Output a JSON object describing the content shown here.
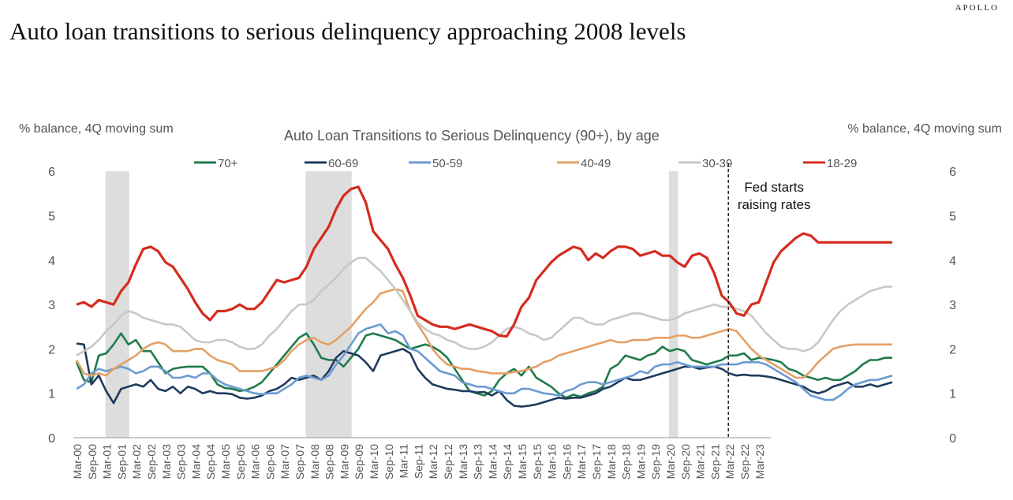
{
  "brand": "APOLLO",
  "headline": "Auto loan transitions to serious delinquency approaching 2008 levels",
  "chart_data": {
    "type": "line",
    "title": "Auto Loan Transitions to Serious Delinquency (90+), by age",
    "ylabel_left": "% balance, 4Q moving sum",
    "ylabel_right": "% balance, 4Q moving sum",
    "ylim": [
      0,
      6
    ],
    "yticks": [
      0,
      1,
      2,
      3,
      4,
      5,
      6
    ],
    "grid": false,
    "legend_position": "top",
    "x_start": "2000Q1",
    "x_end": "2023Q2",
    "xtick_labels": [
      "Mar-00",
      "Sep-00",
      "Mar-01",
      "Sep-01",
      "Mar-02",
      "Sep-02",
      "Mar-03",
      "Sep-03",
      "Mar-04",
      "Sep-04",
      "Mar-05",
      "Sep-05",
      "Mar-06",
      "Sep-06",
      "Mar-07",
      "Sep-07",
      "Mar-08",
      "Sep-08",
      "Mar-09",
      "Sep-09",
      "Mar-10",
      "Sep-10",
      "Mar-11",
      "Sep-11",
      "Mar-12",
      "Sep-12",
      "Mar-13",
      "Sep-13",
      "Mar-14",
      "Sep-14",
      "Mar-15",
      "Sep-15",
      "Mar-16",
      "Sep-16",
      "Mar-17",
      "Sep-17",
      "Mar-18",
      "Sep-18",
      "Mar-19",
      "Sep-19",
      "Mar-20",
      "Sep-20",
      "Mar-21",
      "Sep-21",
      "Mar-22",
      "Sep-22",
      "Mar-23"
    ],
    "recessions": [
      {
        "start": "2001Q1",
        "end": "2001Q4"
      },
      {
        "start": "2007Q4",
        "end": "2009Q2"
      },
      {
        "start": "2020Q1",
        "end": "2020Q2"
      }
    ],
    "annotation": {
      "text_line1": "Fed starts",
      "text_line2": "raising rates",
      "x": "2022Q1"
    },
    "series": [
      {
        "name": "70+",
        "color": "#1e7b4b",
        "values": [
          1.7,
          1.3,
          1.25,
          1.85,
          1.9,
          2.1,
          2.35,
          2.1,
          2.2,
          1.95,
          1.95,
          1.7,
          1.45,
          1.55,
          1.58,
          1.6,
          1.6,
          1.6,
          1.45,
          1.2,
          1.12,
          1.1,
          1.05,
          1.08,
          1.15,
          1.25,
          1.45,
          1.65,
          1.85,
          2.05,
          2.25,
          2.35,
          2.1,
          1.8,
          1.75,
          1.75,
          1.6,
          1.8,
          2.0,
          2.3,
          2.35,
          2.3,
          2.25,
          2.2,
          2.1,
          2.0,
          2.05,
          2.1,
          2.05,
          1.95,
          1.8,
          1.55,
          1.3,
          1.05,
          1.0,
          0.95,
          1.05,
          1.3,
          1.45,
          1.55,
          1.4,
          1.6,
          1.35,
          1.25,
          1.15,
          1.0,
          0.9,
          0.97,
          0.92,
          1.0,
          1.05,
          1.15,
          1.55,
          1.65,
          1.85,
          1.8,
          1.75,
          1.85,
          1.9,
          2.05,
          1.95,
          2.0,
          1.95,
          1.75,
          1.7,
          1.65,
          1.7,
          1.75,
          1.85,
          1.85,
          1.9,
          1.75,
          1.8,
          1.78,
          1.75,
          1.7,
          1.55,
          1.5,
          1.4,
          1.35,
          1.3,
          1.35,
          1.3,
          1.3,
          1.4,
          1.5,
          1.65,
          1.75,
          1.75,
          1.8,
          1.8
        ]
      },
      {
        "name": "60-69",
        "color": "#203a5e",
        "values": [
          2.12,
          2.1,
          1.2,
          1.4,
          1.05,
          0.78,
          1.1,
          1.15,
          1.2,
          1.15,
          1.3,
          1.1,
          1.05,
          1.15,
          1.0,
          1.15,
          1.1,
          1.0,
          1.05,
          1.0,
          1.0,
          0.98,
          0.9,
          0.88,
          0.9,
          0.95,
          1.05,
          1.1,
          1.2,
          1.35,
          1.3,
          1.35,
          1.4,
          1.3,
          1.5,
          1.8,
          1.95,
          1.9,
          1.85,
          1.7,
          1.5,
          1.85,
          1.9,
          1.95,
          2.0,
          1.9,
          1.55,
          1.35,
          1.2,
          1.15,
          1.1,
          1.08,
          1.05,
          1.05,
          1.02,
          1.03,
          0.95,
          1.05,
          0.85,
          0.72,
          0.7,
          0.72,
          0.75,
          0.8,
          0.85,
          0.9,
          0.88,
          0.9,
          0.9,
          0.95,
          1.0,
          1.1,
          1.15,
          1.25,
          1.35,
          1.3,
          1.3,
          1.35,
          1.4,
          1.45,
          1.5,
          1.55,
          1.6,
          1.6,
          1.55,
          1.58,
          1.6,
          1.55,
          1.45,
          1.4,
          1.42,
          1.4,
          1.4,
          1.38,
          1.35,
          1.3,
          1.25,
          1.2,
          1.15,
          1.05,
          1.0,
          1.05,
          1.15,
          1.2,
          1.25,
          1.15,
          1.15,
          1.2,
          1.15,
          1.2,
          1.25
        ]
      },
      {
        "name": "50-59",
        "color": "#6b9bd2",
        "values": [
          1.1,
          1.2,
          1.45,
          1.55,
          1.5,
          1.55,
          1.6,
          1.55,
          1.45,
          1.5,
          1.6,
          1.6,
          1.5,
          1.35,
          1.35,
          1.4,
          1.35,
          1.45,
          1.45,
          1.3,
          1.2,
          1.15,
          1.1,
          1.05,
          1.0,
          0.98,
          1.0,
          1.0,
          1.1,
          1.2,
          1.35,
          1.4,
          1.35,
          1.3,
          1.4,
          1.65,
          1.85,
          2.1,
          2.35,
          2.45,
          2.5,
          2.55,
          2.35,
          2.4,
          2.3,
          2.0,
          1.95,
          1.8,
          1.65,
          1.5,
          1.45,
          1.4,
          1.25,
          1.2,
          1.15,
          1.15,
          1.1,
          1.05,
          1.0,
          1.0,
          1.1,
          1.1,
          1.05,
          1.0,
          0.98,
          0.95,
          1.05,
          1.1,
          1.2,
          1.25,
          1.25,
          1.2,
          1.25,
          1.3,
          1.35,
          1.4,
          1.5,
          1.45,
          1.6,
          1.65,
          1.65,
          1.7,
          1.65,
          1.6,
          1.6,
          1.6,
          1.6,
          1.65,
          1.65,
          1.65,
          1.7,
          1.7,
          1.7,
          1.65,
          1.55,
          1.45,
          1.35,
          1.25,
          1.1,
          0.95,
          0.9,
          0.85,
          0.85,
          0.95,
          1.1,
          1.2,
          1.25,
          1.3,
          1.3,
          1.35,
          1.4
        ]
      },
      {
        "name": "40-49",
        "color": "#e3a066",
        "values": [
          1.75,
          1.45,
          1.4,
          1.45,
          1.4,
          1.55,
          1.65,
          1.75,
          1.85,
          2.0,
          2.1,
          2.15,
          2.1,
          1.95,
          1.95,
          1.95,
          2.0,
          2.0,
          1.85,
          1.75,
          1.7,
          1.65,
          1.5,
          1.5,
          1.5,
          1.5,
          1.55,
          1.6,
          1.75,
          1.95,
          2.1,
          2.2,
          2.25,
          2.15,
          2.1,
          2.2,
          2.35,
          2.5,
          2.7,
          2.9,
          3.05,
          3.25,
          3.3,
          3.35,
          3.3,
          2.85,
          2.55,
          2.3,
          2.0,
          1.8,
          1.65,
          1.6,
          1.55,
          1.55,
          1.5,
          1.48,
          1.45,
          1.45,
          1.45,
          1.48,
          1.5,
          1.55,
          1.6,
          1.7,
          1.75,
          1.85,
          1.9,
          1.95,
          2.0,
          2.05,
          2.1,
          2.15,
          2.2,
          2.15,
          2.15,
          2.2,
          2.2,
          2.2,
          2.25,
          2.25,
          2.25,
          2.3,
          2.3,
          2.25,
          2.25,
          2.3,
          2.35,
          2.4,
          2.45,
          2.4,
          2.2,
          2.0,
          1.85,
          1.75,
          1.65,
          1.55,
          1.45,
          1.35,
          1.35,
          1.5,
          1.7,
          1.85,
          2.0,
          2.05,
          2.08,
          2.1,
          2.1,
          2.1,
          2.1,
          2.1,
          2.1
        ]
      },
      {
        "name": "30-39",
        "color": "#c8c8c4",
        "values": [
          1.85,
          1.95,
          2.05,
          2.2,
          2.4,
          2.55,
          2.75,
          2.85,
          2.8,
          2.7,
          2.65,
          2.6,
          2.55,
          2.55,
          2.5,
          2.35,
          2.2,
          2.15,
          2.15,
          2.2,
          2.2,
          2.15,
          2.05,
          2.0,
          2.0,
          2.1,
          2.3,
          2.45,
          2.65,
          2.85,
          3.0,
          3.0,
          3.1,
          3.3,
          3.45,
          3.6,
          3.8,
          3.95,
          4.05,
          4.05,
          3.9,
          3.75,
          3.55,
          3.35,
          3.1,
          2.85,
          2.6,
          2.45,
          2.35,
          2.3,
          2.2,
          2.15,
          2.05,
          2.0,
          2.0,
          2.05,
          2.15,
          2.3,
          2.45,
          2.5,
          2.45,
          2.35,
          2.3,
          2.2,
          2.25,
          2.4,
          2.55,
          2.7,
          2.7,
          2.6,
          2.55,
          2.55,
          2.65,
          2.7,
          2.75,
          2.8,
          2.8,
          2.75,
          2.7,
          2.65,
          2.65,
          2.7,
          2.8,
          2.85,
          2.9,
          2.95,
          3.0,
          2.95,
          2.95,
          2.9,
          2.85,
          2.75,
          2.55,
          2.35,
          2.2,
          2.05,
          2.0,
          2.0,
          1.95,
          2.0,
          2.15,
          2.4,
          2.65,
          2.85,
          3.0,
          3.1,
          3.2,
          3.3,
          3.35,
          3.4,
          3.4
        ]
      },
      {
        "name": "18-29",
        "color": "#d52b1e",
        "values": [
          3.0,
          3.05,
          2.95,
          3.1,
          3.05,
          3.0,
          3.3,
          3.5,
          3.9,
          4.25,
          4.3,
          4.2,
          3.95,
          3.85,
          3.6,
          3.35,
          3.05,
          2.8,
          2.65,
          2.85,
          2.85,
          2.9,
          3.0,
          2.9,
          2.9,
          3.05,
          3.3,
          3.55,
          3.5,
          3.55,
          3.6,
          3.85,
          4.25,
          4.5,
          4.75,
          5.15,
          5.45,
          5.6,
          5.65,
          5.3,
          4.65,
          4.45,
          4.25,
          3.9,
          3.6,
          3.2,
          2.75,
          2.65,
          2.55,
          2.5,
          2.5,
          2.45,
          2.5,
          2.55,
          2.5,
          2.45,
          2.4,
          2.3,
          2.28,
          2.55,
          2.95,
          3.15,
          3.55,
          3.75,
          3.95,
          4.1,
          4.2,
          4.3,
          4.25,
          4.0,
          4.15,
          4.05,
          4.2,
          4.3,
          4.3,
          4.25,
          4.1,
          4.15,
          4.2,
          4.1,
          4.1,
          3.95,
          3.85,
          4.1,
          4.15,
          4.05,
          3.7,
          3.2,
          3.05,
          2.8,
          2.75,
          3.0,
          3.05,
          3.5,
          3.95,
          4.2,
          4.35,
          4.5,
          4.6,
          4.55,
          4.4,
          4.4,
          4.4,
          4.4,
          4.4,
          4.4,
          4.4,
          4.4,
          4.4,
          4.4,
          4.4
        ]
      }
    ]
  }
}
